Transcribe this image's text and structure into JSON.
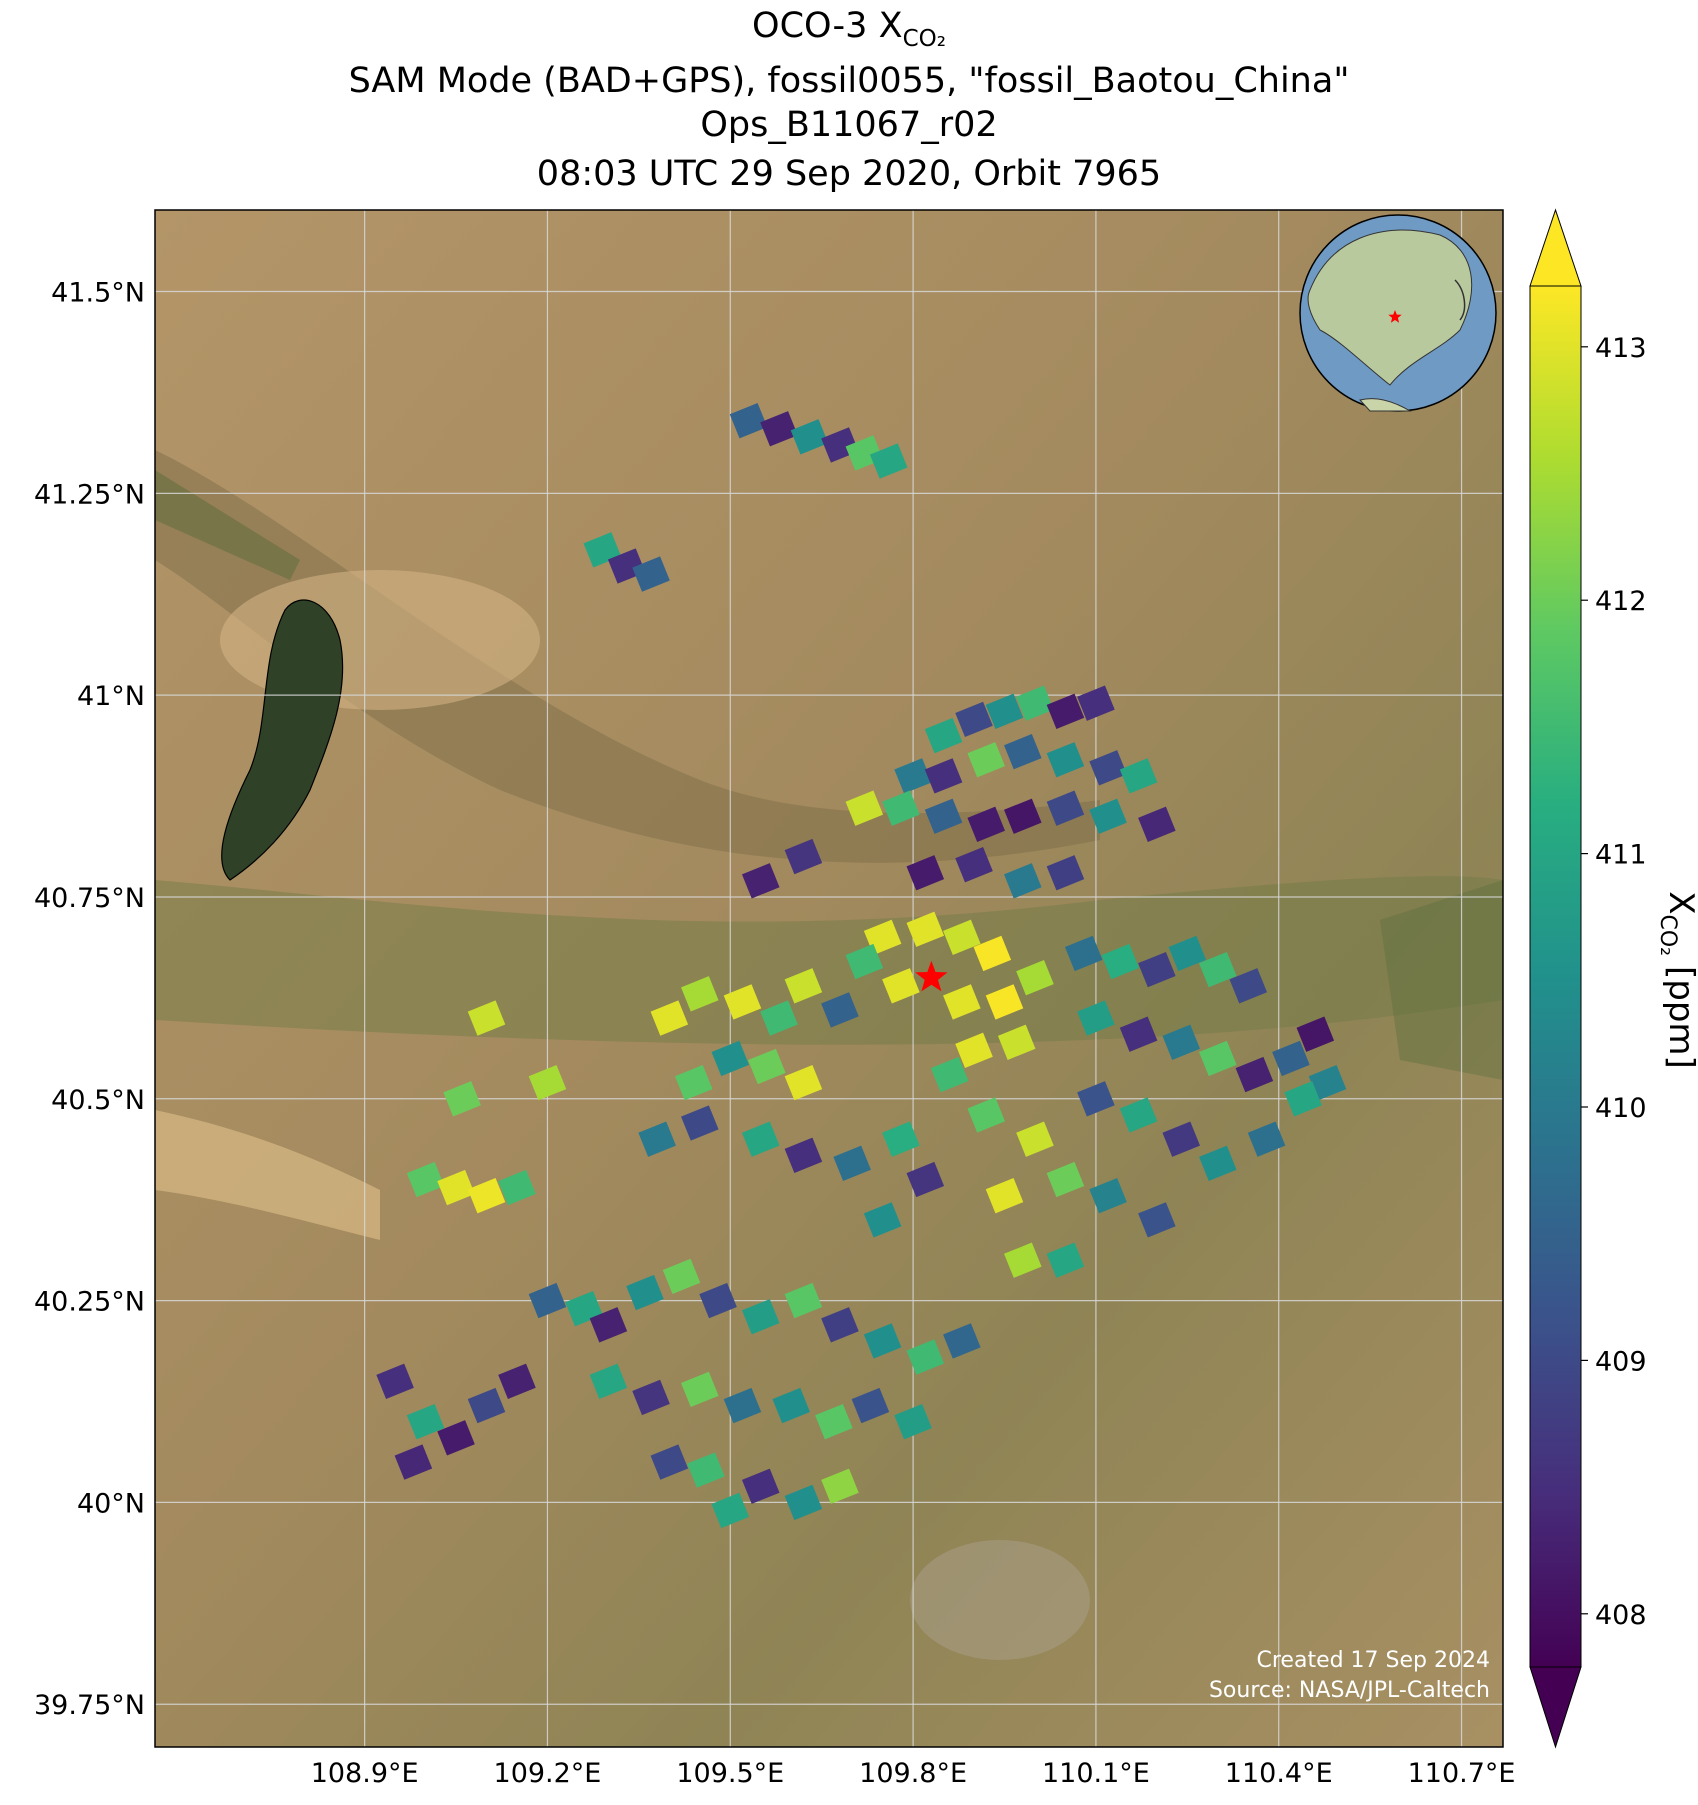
{
  "chart_data": {
    "type": "map",
    "title": {
      "line1_main": "OCO-3 X",
      "line1_sub": "CO₂",
      "line2": "SAM Mode (BAD+GPS), fossil0055, \"fossil_Baotou_China\"",
      "line3": "Ops_B11067_r02",
      "line4": "08:03 UTC 29 Sep 2020, Orbit 7965"
    },
    "xlim": [
      108.556,
      110.768
    ],
    "ylim": [
      39.697,
      41.601
    ],
    "xticks": [
      {
        "value": 108.9,
        "label": "108.9°E"
      },
      {
        "value": 109.2,
        "label": "109.2°E"
      },
      {
        "value": 109.5,
        "label": "109.5°E"
      },
      {
        "value": 109.8,
        "label": "109.8°E"
      },
      {
        "value": 110.1,
        "label": "110.1°E"
      },
      {
        "value": 110.4,
        "label": "110.4°E"
      },
      {
        "value": 110.7,
        "label": "110.7°E"
      }
    ],
    "yticks": [
      {
        "value": 39.75,
        "label": "39.75°N"
      },
      {
        "value": 40,
        "label": "40°N"
      },
      {
        "value": 40.25,
        "label": "40.25°N"
      },
      {
        "value": 40.5,
        "label": "40.5°N"
      },
      {
        "value": 40.75,
        "label": "40.75°N"
      },
      {
        "value": 41,
        "label": "41°N"
      },
      {
        "value": 41.25,
        "label": "41.25°N"
      },
      {
        "value": 41.5,
        "label": "41.5°N"
      }
    ],
    "grid": true,
    "colormap": "viridis",
    "clim": [
      407.79,
      413.24
    ],
    "cticks": [
      408,
      409,
      410,
      411,
      412,
      413
    ],
    "colorbar_label": {
      "symbol": "X",
      "sub": "CO₂",
      "unit": "[ppm]"
    },
    "site": {
      "lon": 109.83,
      "lat": 40.65,
      "color": "#ff0000"
    },
    "credits": [
      "Created 17 Sep 2024",
      "Source: NASA/JPL-Caltech"
    ],
    "soundings": {
      "lon": [
        109.53,
        109.58,
        109.63,
        109.68,
        109.72,
        109.76,
        109.29,
        109.33,
        109.37,
        109.85,
        109.9,
        109.95,
        110.0,
        110.05,
        110.1,
        109.8,
        109.85,
        109.92,
        109.98,
        110.05,
        110.12,
        110.17,
        109.72,
        109.78,
        109.85,
        109.92,
        109.98,
        110.05,
        110.12,
        110.2,
        109.55,
        109.62,
        109.82,
        109.9,
        109.98,
        110.05,
        109.75,
        109.82,
        109.88,
        109.93,
        109.72,
        109.78,
        109.88,
        109.95,
        110.0,
        109.9,
        109.97,
        109.86,
        110.08,
        110.14,
        110.2,
        110.25,
        110.3,
        110.35,
        110.1,
        110.17,
        110.24,
        110.3,
        110.36,
        110.42,
        110.46,
        110.48,
        110.1,
        110.17,
        110.24,
        110.3,
        110.38,
        110.44,
        110.0,
        110.05,
        110.12,
        110.2,
        109.95,
        109.98,
        110.05,
        109.92,
        109.4,
        109.45,
        109.52,
        109.58,
        109.62,
        109.68,
        109.5,
        109.56,
        109.62,
        109.44,
        109.38,
        109.45,
        109.55,
        109.62,
        109.7,
        109.78,
        109.82,
        109.75,
        109.0,
        109.05,
        109.1,
        109.15,
        109.1,
        109.2,
        109.06,
        109.2,
        109.26,
        109.3,
        109.36,
        109.42,
        109.48,
        109.55,
        109.62,
        109.68,
        109.75,
        109.82,
        109.88,
        109.3,
        109.37,
        109.45,
        109.52,
        109.6,
        109.67,
        109.73,
        109.8,
        109.4,
        109.46,
        109.55,
        109.62,
        109.68,
        109.5,
        108.95,
        109.0,
        109.05,
        109.1,
        109.15,
        108.98
      ],
      "lat": [
        41.34,
        41.33,
        41.32,
        41.31,
        41.3,
        41.29,
        41.18,
        41.16,
        41.15,
        40.95,
        40.97,
        40.98,
        40.99,
        40.98,
        40.99,
        40.9,
        40.9,
        40.92,
        40.93,
        40.92,
        40.91,
        40.9,
        40.86,
        40.86,
        40.85,
        40.84,
        40.85,
        40.86,
        40.85,
        40.84,
        40.77,
        40.8,
        40.78,
        40.79,
        40.77,
        40.78,
        40.7,
        40.71,
        40.7,
        40.68,
        40.67,
        40.64,
        40.62,
        40.62,
        40.65,
        40.56,
        40.57,
        40.53,
        40.68,
        40.67,
        40.66,
        40.68,
        40.66,
        40.64,
        40.6,
        40.58,
        40.57,
        40.55,
        40.53,
        40.55,
        40.58,
        40.52,
        40.5,
        40.48,
        40.45,
        40.42,
        40.45,
        40.5,
        40.45,
        40.4,
        40.38,
        40.35,
        40.38,
        40.3,
        40.3,
        40.48,
        40.6,
        40.63,
        40.62,
        40.6,
        40.64,
        40.61,
        40.55,
        40.54,
        40.52,
        40.52,
        40.45,
        40.47,
        40.45,
        40.43,
        40.42,
        40.45,
        40.4,
        40.35,
        40.4,
        40.39,
        40.38,
        40.39,
        40.6,
        40.52,
        40.5,
        40.25,
        40.24,
        40.22,
        40.26,
        40.28,
        40.25,
        40.23,
        40.25,
        40.22,
        40.2,
        40.18,
        40.2,
        40.15,
        40.13,
        40.14,
        40.12,
        40.12,
        40.1,
        40.12,
        40.1,
        40.05,
        40.04,
        40.02,
        40.0,
        40.02,
        39.99,
        40.15,
        40.1,
        40.08,
        40.12,
        40.15,
        40.05
      ],
      "values": [
        409.5,
        408.3,
        410.5,
        408.5,
        411.8,
        411,
        411,
        408.5,
        409.5,
        411,
        409,
        410.5,
        411.5,
        408.2,
        408.5,
        410,
        408.5,
        412,
        409.5,
        410.5,
        409,
        411,
        412.8,
        411.5,
        409.5,
        408.2,
        408.1,
        409,
        410.5,
        408.4,
        408.3,
        408.6,
        408.2,
        408.5,
        410,
        408.8,
        413,
        413,
        412.8,
        413.2,
        411.5,
        413,
        413,
        413.2,
        412.5,
        413,
        412.8,
        411.5,
        409.8,
        411.2,
        408.8,
        410.5,
        411.5,
        409,
        410.8,
        408.5,
        410,
        411.8,
        408.3,
        409.5,
        408.1,
        410.2,
        409.2,
        411,
        408.7,
        410.5,
        409.8,
        411,
        412.8,
        412,
        410.2,
        409.2,
        413,
        412.5,
        411,
        411.8,
        413,
        412.5,
        413,
        411.5,
        412.8,
        409.5,
        410.5,
        412,
        413,
        411.8,
        410,
        409,
        411,
        408.5,
        409.8,
        411.2,
        408.6,
        410.5,
        411.8,
        413,
        413.1,
        411.5,
        412.8,
        412.5,
        412,
        409.5,
        411,
        408.3,
        410.5,
        412,
        409,
        410.8,
        411.8,
        408.8,
        410.5,
        411.5,
        409.6,
        411,
        408.6,
        412,
        409.8,
        410.5,
        411.8,
        409.2,
        410.8,
        409,
        411.5,
        408.5,
        410.5,
        412.3,
        411,
        408.5,
        411,
        408.2,
        409,
        408.3,
        408.4
      ]
    }
  }
}
